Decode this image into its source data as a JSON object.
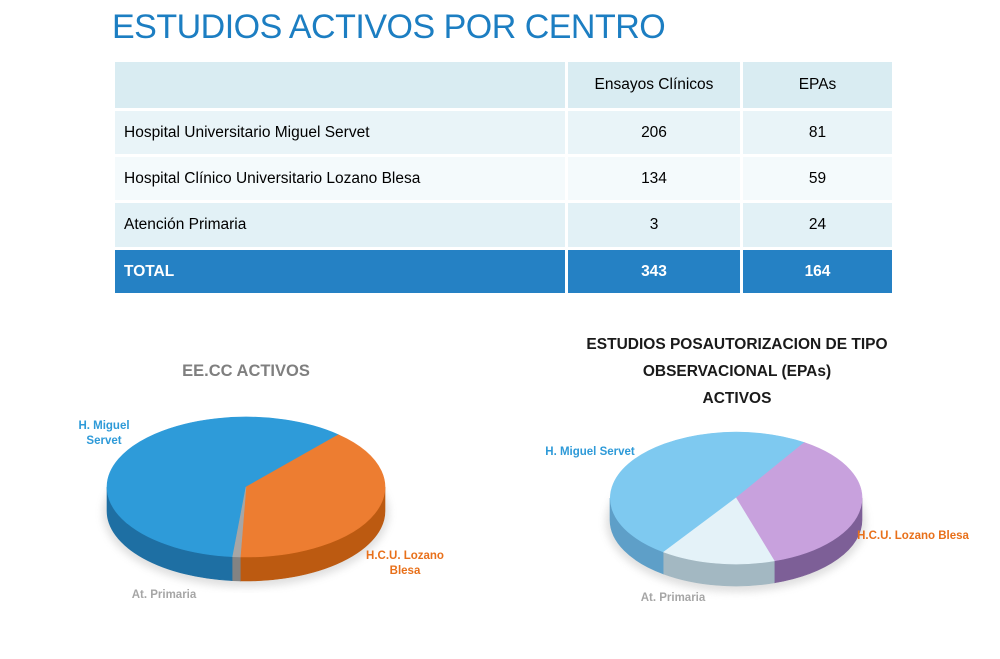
{
  "slide_title": "ESTUDIOS ACTIVOS POR CENTRO",
  "table": {
    "header": {
      "col1": "",
      "col2": "Ensayos Clínicos",
      "col3": "EPAs"
    },
    "rows": [
      {
        "name": "Hospital Universitario Miguel Servet",
        "ensayos": "206",
        "epas": "81"
      },
      {
        "name": "Hospital Clínico Universitario Lozano Blesa",
        "ensayos": "134",
        "epas": "59"
      },
      {
        "name": "Atención Primaria",
        "ensayos": "3",
        "epas": "24"
      }
    ],
    "total": {
      "name": "TOTAL",
      "ensayos": "343",
      "epas": "164"
    }
  },
  "chart_data": [
    {
      "type": "pie",
      "title": "EE.CC ACTIVOS",
      "categories": [
        "H. Miguel Servet",
        "H.C.U. Lozano Blesa",
        "At. Primaria"
      ],
      "values": [
        206,
        134,
        3
      ],
      "colors": [
        "#2E9BD9",
        "#ED7D31",
        "#A6A6A6"
      ],
      "side_colors": [
        "#1E6FA3",
        "#BC5A11",
        "#838383"
      ],
      "label_colors": [
        "#2E9AD8",
        "#E8701A",
        "#A6A6A6"
      ],
      "start_angle": 185.5,
      "effect": "3d",
      "legend_position": "data-labels"
    },
    {
      "type": "pie",
      "title": "ESTUDIOS POSAUTORIZACION DE TIPO\nOBSERVACIONAL (EPAs)\nACTIVOS",
      "categories": [
        "H. Miguel Servet",
        "H.C.U. Lozano Blesa",
        "At. Primaria"
      ],
      "values": [
        81,
        59,
        24
      ],
      "colors": [
        "#7EC9F0",
        "#C8A1DD",
        "#E4F2F8"
      ],
      "side_colors": [
        "#5E9FC8",
        "#7D5F97",
        "#A3B8C2"
      ],
      "label_colors": [
        "#2E9AD8",
        "#E8701A",
        "#A6A6A6"
      ],
      "start_angle": 215,
      "effect": "3d",
      "legend_position": "data-labels"
    }
  ],
  "colors": {
    "slide_title": "#1C7EC2",
    "table_header_bg": "#D9ECF2",
    "table_row1_bg": "#E9F4F8",
    "table_row2_bg": "#F4FAFC",
    "table_row3_bg": "#E2F1F6",
    "table_total_bg": "#2581C4",
    "table_total_text": "#FFFFFF"
  }
}
